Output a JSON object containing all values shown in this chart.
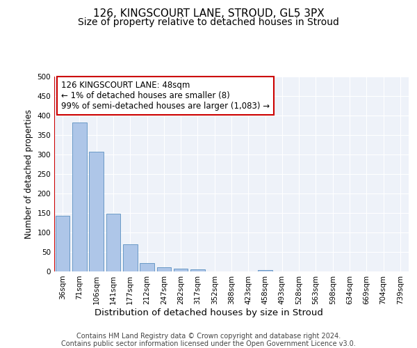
{
  "title1": "126, KINGSCOURT LANE, STROUD, GL5 3PX",
  "title2": "Size of property relative to detached houses in Stroud",
  "xlabel": "Distribution of detached houses by size in Stroud",
  "ylabel": "Number of detached properties",
  "bin_labels": [
    "36sqm",
    "71sqm",
    "106sqm",
    "141sqm",
    "177sqm",
    "212sqm",
    "247sqm",
    "282sqm",
    "317sqm",
    "352sqm",
    "388sqm",
    "423sqm",
    "458sqm",
    "493sqm",
    "528sqm",
    "563sqm",
    "598sqm",
    "634sqm",
    "669sqm",
    "704sqm",
    "739sqm"
  ],
  "bar_values": [
    143,
    383,
    307,
    148,
    69,
    22,
    10,
    7,
    5,
    0,
    0,
    0,
    4,
    0,
    0,
    0,
    0,
    0,
    0,
    0,
    0
  ],
  "bar_color": "#aec6e8",
  "bar_edge_color": "#5a8fc0",
  "annotation_box_text": "126 KINGSCOURT LANE: 48sqm\n← 1% of detached houses are smaller (8)\n99% of semi-detached houses are larger (1,083) →",
  "annotation_box_color": "#ffffff",
  "annotation_box_edge_color": "#cc0000",
  "vline_color": "#cc0000",
  "ylim": [
    0,
    500
  ],
  "yticks": [
    0,
    50,
    100,
    150,
    200,
    250,
    300,
    350,
    400,
    450,
    500
  ],
  "footer_line1": "Contains HM Land Registry data © Crown copyright and database right 2024.",
  "footer_line2": "Contains public sector information licensed under the Open Government Licence v3.0.",
  "background_color": "#eef2f9",
  "grid_color": "#ffffff",
  "title1_fontsize": 11,
  "title2_fontsize": 10,
  "xlabel_fontsize": 9.5,
  "ylabel_fontsize": 8.5,
  "tick_fontsize": 7.5,
  "annotation_fontsize": 8.5,
  "footer_fontsize": 7
}
